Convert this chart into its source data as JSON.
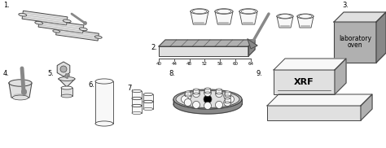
{
  "bg_color": "#ffffff",
  "labels": {
    "1": "1.",
    "2": "2.",
    "3": "3.",
    "4": "4.",
    "5": "5.",
    "6": "6.",
    "7": "7.",
    "8": "8.",
    "9": "9."
  },
  "scale_ticks": [
    "40",
    "44",
    "48",
    "52",
    "56",
    "60",
    "64"
  ],
  "oven_text": [
    "laboratory",
    "oven"
  ],
  "xrf_text": "XRF",
  "lc": "#444444",
  "fl": "#e0e0e0",
  "fm": "#b0b0b0",
  "fd": "#888888",
  "fw": "#f8f8f8"
}
